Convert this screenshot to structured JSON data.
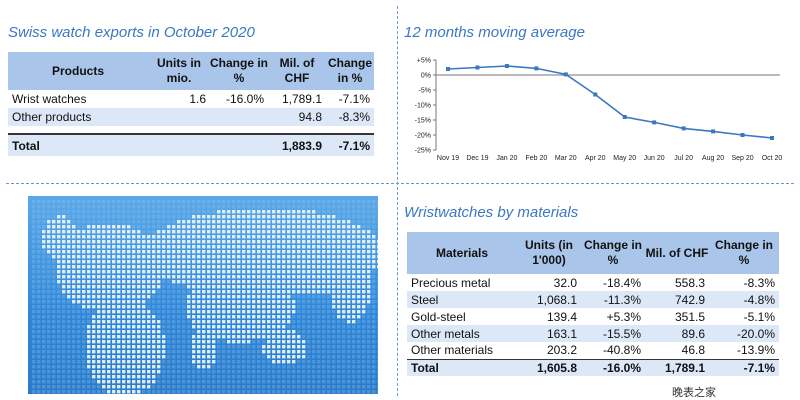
{
  "exports": {
    "title": "Swiss watch exports in October 2020",
    "headers": [
      "Products",
      "Units in mio.",
      "Change in %",
      "Mil. of CHF",
      "Change in %"
    ],
    "rows": [
      {
        "product": "Wrist watches",
        "units": "1.6",
        "change_units": "-16.0%",
        "chf": "1,789.1",
        "change_chf": "-7.1%"
      },
      {
        "product": "Other products",
        "units": "",
        "change_units": "",
        "chf": "94.8",
        "change_chf": "-8.3%"
      }
    ],
    "total": {
      "product": "Total",
      "units": "",
      "change_units": "",
      "chf": "1,883.9",
      "change_chf": "-7.1%"
    }
  },
  "materials": {
    "title": "Wristwatches by materials",
    "headers": [
      "Materials",
      "Units (in 1'000)",
      "Change in %",
      "Mil. of CHF",
      "Change in %"
    ],
    "rows": [
      {
        "material": "Precious metal",
        "units": "32.0",
        "change_units": "-18.4%",
        "chf": "558.3",
        "change_chf": "-8.3%"
      },
      {
        "material": "Steel",
        "units": "1,068.1",
        "change_units": "-11.3%",
        "chf": "742.9",
        "change_chf": "-4.8%"
      },
      {
        "material": "Gold-steel",
        "units": "139.4",
        "change_units": "+5.3%",
        "chf": "351.5",
        "change_chf": "-5.1%"
      },
      {
        "material": "Other metals",
        "units": "163.1",
        "change_units": "-15.5%",
        "chf": "89.6",
        "change_chf": "-20.0%"
      },
      {
        "material": "Other materials",
        "units": "203.2",
        "change_units": "-40.8%",
        "chf": "46.8",
        "change_chf": "-13.9%"
      }
    ],
    "total": {
      "material": "Total",
      "units": "1,605.8",
      "change_units": "-16.0%",
      "chf": "1,789.1",
      "change_chf": "-7.1%"
    }
  },
  "chart_data": {
    "type": "line",
    "title": "12 months moving average",
    "categories": [
      "Nov 19",
      "Dec 19",
      "Jan 20",
      "Feb 20",
      "Mar 20",
      "Apr 20",
      "May 20",
      "Jun 20",
      "Jul 20",
      "Aug 20",
      "Sep 20",
      "Oct 20"
    ],
    "series": [
      {
        "values": [
          2.0,
          2.5,
          3.0,
          2.2,
          0.2,
          -6.5,
          -14.0,
          -15.8,
          -17.8,
          -18.8,
          -20.0,
          -21.0
        ]
      }
    ],
    "ylim": [
      -25,
      5
    ],
    "yticks": [
      5,
      0,
      -5,
      -10,
      -15,
      -20,
      -25
    ],
    "ytick_labels": [
      "+5%",
      "0%",
      "-5%",
      "-10%",
      "-15%",
      "-20%",
      "-25%"
    ],
    "grid": false,
    "colors": {
      "line": "#3a78c2",
      "marker": "#3a78c2"
    }
  },
  "watermark": {
    "text": "晚表之家 www.xbiao.com"
  },
  "colors": {
    "header": "#a9c6ea",
    "shade": "#dce8f7",
    "accent": "#3a78c2"
  }
}
